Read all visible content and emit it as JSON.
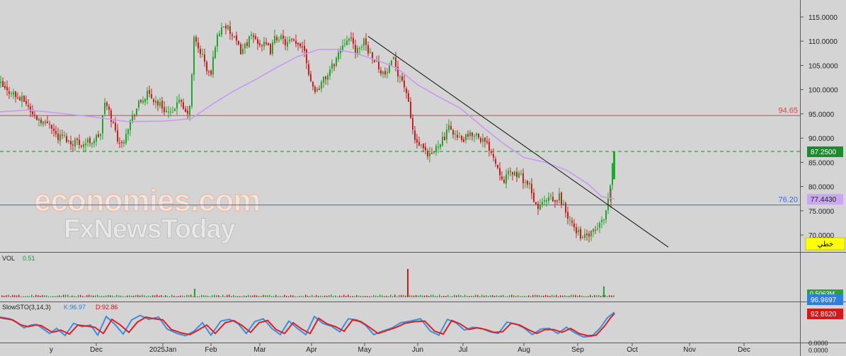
{
  "colors": {
    "background": "#d4d4d4",
    "bull": "#22a52a",
    "bear": "#cc2020",
    "ma_line": "#c79af0",
    "resistance_line": "#d84848",
    "support_line": "#3a6ad0",
    "trendline": "#111111",
    "dashed_price": "#1d8a2a",
    "stoch_k": "#3a8ee6",
    "stoch_d": "#e02020"
  },
  "watermark": {
    "line1": "economies.com",
    "line2": "FxNewsToday"
  },
  "chart_data": [
    {
      "type": "candlestick",
      "panel": "price",
      "y_ticks": [
        "115.0000",
        "110.0000",
        "105.0000",
        "100.0000",
        "95.0000",
        "90.0000",
        "85.0000",
        "80.0000",
        "75.0000",
        "70.0000"
      ],
      "ylim": [
        66.5,
        118.5
      ],
      "levels": [
        {
          "label": "94.65",
          "value": 94.65,
          "color": "#d84848"
        },
        {
          "label": "76.20",
          "value": 76.2,
          "color": "#3a6ad0"
        }
      ],
      "price_tags": [
        {
          "label": "87.2500",
          "value": 87.25,
          "color": "#1e8a2e"
        },
        {
          "label": "77.4430",
          "value": 77.443,
          "color": "#c9a8ee"
        }
      ],
      "trendline": {
        "start_value": 111.0,
        "end_value": 67.5
      },
      "path": [
        [
          0,
          101.5
        ],
        [
          6,
          100.5
        ],
        [
          12,
          99.5
        ],
        [
          18,
          99.8
        ],
        [
          24,
          98.6
        ],
        [
          30,
          98.0
        ],
        [
          36,
          97.8
        ],
        [
          42,
          96.5
        ],
        [
          48,
          94.8
        ],
        [
          54,
          94.2
        ],
        [
          60,
          93.8
        ],
        [
          66,
          92.8
        ],
        [
          72,
          93.5
        ],
        [
          78,
          91.5
        ],
        [
          84,
          90.0
        ],
        [
          90,
          90.5
        ],
        [
          96,
          89.8
        ],
        [
          102,
          88.9
        ],
        [
          108,
          89.6
        ],
        [
          114,
          89.0
        ],
        [
          120,
          88.8
        ],
        [
          126,
          89.3
        ],
        [
          132,
          89.4
        ],
        [
          138,
          90.1
        ],
        [
          144,
          91.0
        ],
        [
          150,
          97.5
        ],
        [
          156,
          95.3
        ],
        [
          162,
          92.8
        ],
        [
          168,
          90.0
        ],
        [
          174,
          88.5
        ],
        [
          180,
          91.5
        ],
        [
          186,
          93.5
        ],
        [
          192,
          95.2
        ],
        [
          198,
          97.0
        ],
        [
          204,
          98.0
        ],
        [
          210,
          99.0
        ],
        [
          216,
          98.3
        ],
        [
          222,
          97.6
        ],
        [
          228,
          96.9
        ],
        [
          234,
          96.0
        ],
        [
          240,
          95.2
        ],
        [
          246,
          94.6
        ],
        [
          252,
          98.0
        ],
        [
          258,
          96.8
        ],
        [
          264,
          95.0
        ],
        [
          270,
          96.0
        ],
        [
          276,
          110.5
        ],
        [
          282,
          108.5
        ],
        [
          288,
          107.0
        ],
        [
          294,
          104.0
        ],
        [
          300,
          103.0
        ],
        [
          306,
          109.5
        ],
        [
          312,
          112.0
        ],
        [
          318,
          113.5
        ],
        [
          324,
          112.5
        ],
        [
          330,
          111.0
        ],
        [
          336,
          109.5
        ],
        [
          342,
          108.0
        ],
        [
          348,
          109.0
        ],
        [
          354,
          110.5
        ],
        [
          360,
          110.8
        ],
        [
          366,
          110.0
        ],
        [
          372,
          109.3
        ],
        [
          378,
          109.0
        ],
        [
          384,
          108.0
        ],
        [
          390,
          110.5
        ],
        [
          396,
          111.0
        ],
        [
          402,
          110.0
        ],
        [
          408,
          109.5
        ],
        [
          414,
          110.0
        ],
        [
          420,
          109.0
        ],
        [
          426,
          109.5
        ],
        [
          432,
          108.5
        ],
        [
          438,
          103.5
        ],
        [
          444,
          100.5
        ],
        [
          450,
          99.8
        ],
        [
          456,
          101.5
        ],
        [
          462,
          102.5
        ],
        [
          468,
          104.0
        ],
        [
          474,
          105.5
        ],
        [
          480,
          107.5
        ],
        [
          486,
          109.5
        ],
        [
          492,
          110.8
        ],
        [
          498,
          110.0
        ],
        [
          504,
          108.3
        ],
        [
          510,
          107.8
        ],
        [
          516,
          110.5
        ],
        [
          522,
          108.0
        ],
        [
          528,
          107.0
        ],
        [
          534,
          105.5
        ],
        [
          540,
          104.0
        ],
        [
          546,
          103.0
        ],
        [
          552,
          104.5
        ],
        [
          558,
          106.0
        ],
        [
          564,
          103.5
        ],
        [
          570,
          102.0
        ],
        [
          576,
          99.5
        ],
        [
          582,
          94.0
        ],
        [
          588,
          89.5
        ],
        [
          594,
          88.5
        ],
        [
          600,
          87.5
        ],
        [
          606,
          86.0
        ],
        [
          612,
          86.5
        ],
        [
          618,
          88.0
        ],
        [
          624,
          89.5
        ],
        [
          630,
          90.0
        ],
        [
          636,
          92.0
        ],
        [
          642,
          91.5
        ],
        [
          648,
          90.0
        ],
        [
          654,
          89.5
        ],
        [
          660,
          90.0
        ],
        [
          666,
          90.5
        ],
        [
          672,
          91.0
        ],
        [
          678,
          90.5
        ],
        [
          684,
          89.5
        ],
        [
          690,
          88.5
        ],
        [
          696,
          87.5
        ],
        [
          702,
          85.0
        ],
        [
          708,
          83.0
        ],
        [
          714,
          81.5
        ],
        [
          720,
          82.5
        ],
        [
          726,
          83.0
        ],
        [
          732,
          82.5
        ],
        [
          738,
          82.0
        ],
        [
          744,
          81.0
        ],
        [
          750,
          80.0
        ],
        [
          756,
          76.5
        ],
        [
          762,
          75.8
        ],
        [
          768,
          76.5
        ],
        [
          774,
          77.0
        ],
        [
          780,
          77.5
        ],
        [
          786,
          76.5
        ],
        [
          792,
          78.0
        ],
        [
          798,
          76.0
        ],
        [
          804,
          73.5
        ],
        [
          810,
          72.0
        ],
        [
          816,
          71.0
        ],
        [
          822,
          70.0
        ],
        [
          828,
          69.5
        ],
        [
          834,
          70.0
        ],
        [
          840,
          70.5
        ],
        [
          846,
          71.5
        ],
        [
          852,
          72.8
        ],
        [
          858,
          75.0
        ],
        [
          864,
          80.0
        ],
        [
          868,
          87.25
        ]
      ],
      "ma_path": [
        [
          0,
          95.4
        ],
        [
          40,
          95.8
        ],
        [
          80,
          95.2
        ],
        [
          130,
          94.4
        ],
        [
          180,
          93.4
        ],
        [
          230,
          93.5
        ],
        [
          270,
          94.0
        ],
        [
          300,
          97.0
        ],
        [
          330,
          99.7
        ],
        [
          360,
          102.0
        ],
        [
          390,
          104.5
        ],
        [
          420,
          106.8
        ],
        [
          450,
          108.3
        ],
        [
          475,
          108.3
        ],
        [
          500,
          107.6
        ],
        [
          530,
          106.2
        ],
        [
          560,
          104.5
        ],
        [
          590,
          101.0
        ],
        [
          620,
          98.5
        ],
        [
          650,
          96.2
        ],
        [
          680,
          92.5
        ],
        [
          710,
          89.0
        ],
        [
          740,
          86.0
        ],
        [
          770,
          85.0
        ],
        [
          800,
          83.4
        ],
        [
          830,
          80.6
        ],
        [
          850,
          77.9
        ],
        [
          868,
          77.44
        ]
      ]
    },
    {
      "type": "bar",
      "panel": "volume",
      "label": "VOL",
      "value_label": "0.51",
      "tag_label": "0.5063M",
      "ylim": [
        0,
        10
      ],
      "spikes": [
        {
          "x": 274,
          "value": 2.4,
          "dir": "up"
        },
        {
          "x": 575,
          "value": 8.0,
          "dir": "down"
        },
        {
          "x": 852,
          "value": 3.1,
          "dir": "up"
        }
      ]
    },
    {
      "type": "line",
      "panel": "stochastic",
      "label": "SlowSTO(3,14,3)",
      "k_label": "K:96.97",
      "d_label": "D:92.86",
      "k_tag": "96.9697",
      "d_tag": "92.8620",
      "bottom_tag": "0.0000",
      "ylim": [
        0,
        100
      ],
      "k_path": [
        [
          0,
          80
        ],
        [
          14,
          74
        ],
        [
          24,
          60
        ],
        [
          34,
          42
        ],
        [
          44,
          52
        ],
        [
          52,
          54
        ],
        [
          70,
          22
        ],
        [
          80,
          40
        ],
        [
          92,
          15
        ],
        [
          104,
          58
        ],
        [
          116,
          46
        ],
        [
          128,
          52
        ],
        [
          138,
          16
        ],
        [
          150,
          82
        ],
        [
          162,
          55
        ],
        [
          174,
          20
        ],
        [
          186,
          70
        ],
        [
          198,
          86
        ],
        [
          210,
          72
        ],
        [
          224,
          80
        ],
        [
          236,
          38
        ],
        [
          250,
          22
        ],
        [
          262,
          14
        ],
        [
          274,
          30
        ],
        [
          286,
          60
        ],
        [
          298,
          16
        ],
        [
          312,
          66
        ],
        [
          324,
          72
        ],
        [
          336,
          58
        ],
        [
          348,
          22
        ],
        [
          360,
          64
        ],
        [
          372,
          74
        ],
        [
          384,
          40
        ],
        [
          396,
          18
        ],
        [
          408,
          66
        ],
        [
          420,
          40
        ],
        [
          432,
          18
        ],
        [
          444,
          82
        ],
        [
          456,
          58
        ],
        [
          468,
          48
        ],
        [
          480,
          28
        ],
        [
          492,
          74
        ],
        [
          504,
          70
        ],
        [
          516,
          52
        ],
        [
          528,
          18
        ],
        [
          540,
          30
        ],
        [
          554,
          42
        ],
        [
          566,
          60
        ],
        [
          580,
          66
        ],
        [
          594,
          74
        ],
        [
          608,
          30
        ],
        [
          620,
          16
        ],
        [
          632,
          72
        ],
        [
          644,
          60
        ],
        [
          656,
          34
        ],
        [
          668,
          44
        ],
        [
          680,
          40
        ],
        [
          692,
          28
        ],
        [
          704,
          22
        ],
        [
          716,
          62
        ],
        [
          728,
          56
        ],
        [
          740,
          42
        ],
        [
          752,
          18
        ],
        [
          764,
          38
        ],
        [
          776,
          40
        ],
        [
          788,
          22
        ],
        [
          800,
          44
        ],
        [
          812,
          24
        ],
        [
          824,
          10
        ],
        [
          836,
          12
        ],
        [
          848,
          42
        ],
        [
          858,
          78
        ],
        [
          868,
          96.97
        ]
      ],
      "d_path": [
        [
          0,
          78
        ],
        [
          18,
          70
        ],
        [
          30,
          52
        ],
        [
          40,
          46
        ],
        [
          50,
          52
        ],
        [
          58,
          50
        ],
        [
          74,
          26
        ],
        [
          86,
          34
        ],
        [
          98,
          20
        ],
        [
          110,
          52
        ],
        [
          122,
          48
        ],
        [
          134,
          44
        ],
        [
          146,
          22
        ],
        [
          158,
          72
        ],
        [
          170,
          52
        ],
        [
          182,
          26
        ],
        [
          194,
          62
        ],
        [
          206,
          80
        ],
        [
          218,
          74
        ],
        [
          230,
          70
        ],
        [
          242,
          36
        ],
        [
          256,
          24
        ],
        [
          268,
          18
        ],
        [
          280,
          34
        ],
        [
          292,
          52
        ],
        [
          304,
          22
        ],
        [
          318,
          60
        ],
        [
          330,
          68
        ],
        [
          342,
          50
        ],
        [
          354,
          26
        ],
        [
          366,
          60
        ],
        [
          378,
          68
        ],
        [
          390,
          36
        ],
        [
          402,
          22
        ],
        [
          414,
          60
        ],
        [
          426,
          38
        ],
        [
          438,
          22
        ],
        [
          450,
          76
        ],
        [
          462,
          56
        ],
        [
          474,
          46
        ],
        [
          486,
          30
        ],
        [
          498,
          70
        ],
        [
          510,
          64
        ],
        [
          522,
          44
        ],
        [
          534,
          22
        ],
        [
          546,
          32
        ],
        [
          560,
          44
        ],
        [
          572,
          58
        ],
        [
          586,
          64
        ],
        [
          600,
          66
        ],
        [
          614,
          30
        ],
        [
          626,
          20
        ],
        [
          638,
          68
        ],
        [
          650,
          56
        ],
        [
          662,
          36
        ],
        [
          674,
          42
        ],
        [
          686,
          36
        ],
        [
          698,
          26
        ],
        [
          710,
          28
        ],
        [
          722,
          58
        ],
        [
          734,
          52
        ],
        [
          746,
          36
        ],
        [
          758,
          22
        ],
        [
          770,
          36
        ],
        [
          782,
          36
        ],
        [
          794,
          26
        ],
        [
          806,
          40
        ],
        [
          818,
          22
        ],
        [
          830,
          14
        ],
        [
          842,
          16
        ],
        [
          854,
          48
        ],
        [
          862,
          76
        ],
        [
          868,
          92.86
        ]
      ]
    }
  ],
  "x_axis": {
    "ticks": [
      "Dec",
      "2025Jan",
      "Feb",
      "Mar",
      "Apr",
      "May",
      "Jun",
      "Jul",
      "Aug",
      "Sep",
      "Oct",
      "Nov",
      "Dec"
    ],
    "edge_tick": "y",
    "right_tag": "0.0000"
  },
  "badge": {
    "label": "خطي"
  }
}
